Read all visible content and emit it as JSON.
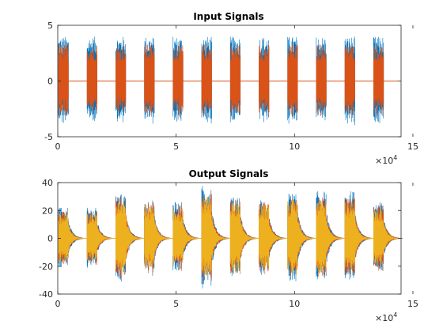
{
  "chart_data": [
    {
      "type": "line",
      "title": "Input Signals",
      "xlabel": "",
      "ylabel": "",
      "xlim": [
        0,
        145000
      ],
      "ylim": [
        -5,
        5
      ],
      "x_ticks": [
        0,
        5,
        10,
        15
      ],
      "y_ticks": [
        -5,
        0,
        5
      ],
      "x_exponent_base": "×10",
      "x_exponent_power": "4",
      "grid": false,
      "series": [
        {
          "color": "#0072BD",
          "bursts_x_start": [
            300,
            12400,
            24500,
            36600,
            48700,
            60800,
            72900,
            85000,
            97100,
            109200,
            121300,
            133400
          ],
          "burst_width": 4200,
          "peak_amplitude": 4.0,
          "baseline": 0,
          "x_end": 144300
        },
        {
          "color": "#D95319",
          "bursts_x_start": [
            300,
            12400,
            24500,
            36600,
            48700,
            60800,
            72900,
            85000,
            97100,
            109200,
            121300,
            133400
          ],
          "burst_width": 4200,
          "peak_amplitude": 3.3,
          "baseline": 0,
          "x_end": 144300
        }
      ]
    },
    {
      "type": "line",
      "title": "Output Signals",
      "xlabel": "",
      "ylabel": "",
      "xlim": [
        0,
        145000
      ],
      "ylim": [
        -40,
        40
      ],
      "x_ticks": [
        0,
        5,
        10,
        15
      ],
      "y_ticks": [
        -40,
        -20,
        0,
        20,
        40
      ],
      "x_exponent_base": "×10",
      "x_exponent_power": "4",
      "grid": false,
      "series": [
        {
          "color": "#0072BD",
          "bursts_x_start": [
            300,
            12400,
            24500,
            36600,
            48700,
            60800,
            72900,
            85000,
            97100,
            109200,
            121300,
            133400
          ],
          "burst_width": 4200,
          "decay_length": 8000,
          "peak_amplitude": [
            22,
            22,
            32,
            28,
            26,
            38,
            30,
            28,
            33,
            34,
            34,
            26
          ],
          "baseline": 0,
          "x_end": 144300
        },
        {
          "color": "#D95319",
          "bursts_x_start": [
            300,
            12400,
            24500,
            36600,
            48700,
            60800,
            72900,
            85000,
            97100,
            109200,
            121300,
            133400
          ],
          "burst_width": 4200,
          "decay_length": 8000,
          "peak_amplitude": [
            20,
            20,
            30,
            26,
            24,
            33,
            28,
            26,
            30,
            30,
            30,
            24
          ],
          "baseline": 0,
          "x_end": 144300
        },
        {
          "color": "#EDB120",
          "bursts_x_start": [
            300,
            12400,
            24500,
            36600,
            48700,
            60800,
            72900,
            85000,
            97100,
            109200,
            121300,
            133400
          ],
          "burst_width": 4200,
          "decay_length": 7000,
          "peak_amplitude": [
            18,
            18,
            28,
            24,
            22,
            30,
            26,
            24,
            28,
            27,
            27,
            21
          ],
          "baseline": 0,
          "x_end": 144300
        }
      ]
    }
  ]
}
